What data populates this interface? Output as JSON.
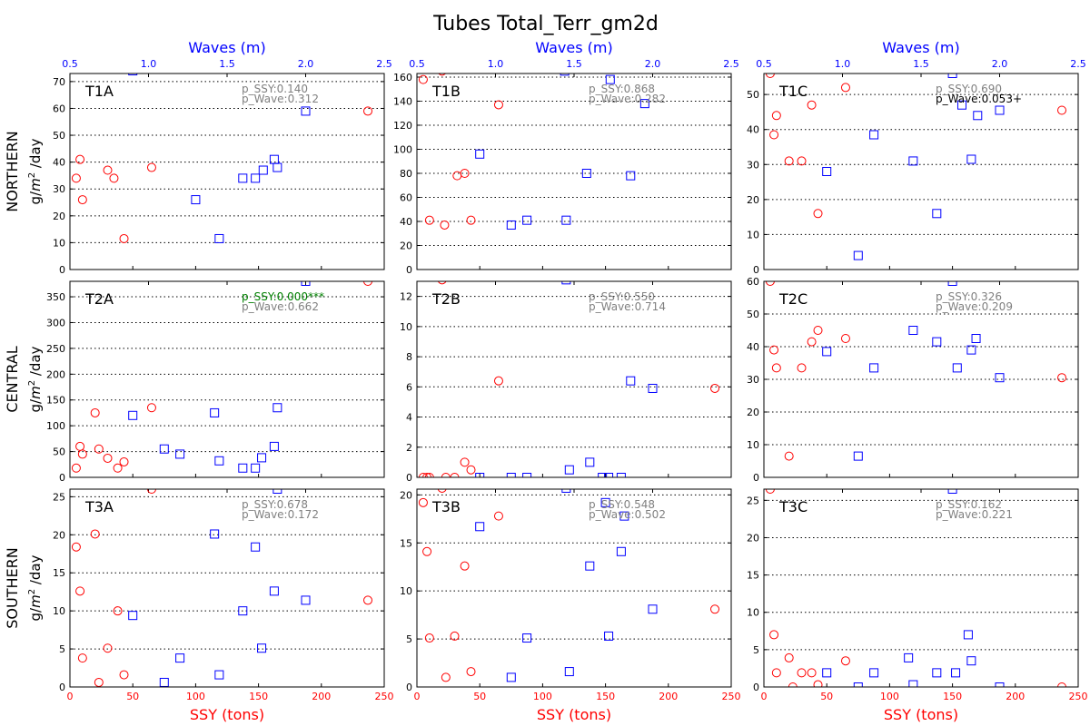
{
  "figure": {
    "title": "Tubes Total_Terr_gm2d",
    "top_axis_label": "Waves (m)",
    "bottom_axis_label": "SSY (tons)",
    "ssy_ticks": [
      "0",
      "50",
      "100",
      "150",
      "200",
      "250"
    ],
    "wave_ticks": [
      "0.5",
      "1.0",
      "1.5",
      "2.0",
      "2.5"
    ],
    "row_labels": [
      "NORTHERN",
      "CENTRAL",
      "SOUTHERN"
    ],
    "units_prefix": "g/",
    "units_m": "m",
    "units_exp": "2",
    "units_suffix": " /day",
    "colors": {
      "ssy": "#ff0000",
      "wave": "#0000ff",
      "title_wave": "#0000ff",
      "title_ssy": "#ff0000",
      "sig_green": "#008000",
      "sig_black": "#000000",
      "gray": "#808080"
    }
  },
  "chart_data": [
    {
      "type": "scatter",
      "title": "T1A",
      "p_ssy": "p_SSY:0.140",
      "p_wave": "p_Wave:0.312",
      "p_ssy_color": "gray",
      "p_wave_color": "gray",
      "xlim_ssy": [
        0,
        250
      ],
      "xlim_wave": [
        0.5,
        2.5
      ],
      "ylim": [
        0,
        73
      ],
      "yticks": [
        0,
        10,
        20,
        30,
        40,
        50,
        60,
        70
      ],
      "series": [
        {
          "name": "SSY",
          "marker": "circle",
          "color": "#ff0000",
          "x": [
            5,
            10,
            8,
            30,
            35,
            65,
            43,
            237
          ],
          "y": [
            34,
            26,
            41,
            37,
            34,
            38,
            11.5,
            59
          ]
        },
        {
          "name": "Waves",
          "marker": "square",
          "color": "#0000ff",
          "x": [
            0.9,
            1.3,
            1.45,
            1.6,
            1.68,
            1.73,
            1.8,
            1.82,
            2.0
          ],
          "y": [
            74,
            26,
            11.5,
            34,
            34,
            37,
            41,
            38,
            59
          ]
        }
      ]
    },
    {
      "type": "scatter",
      "title": "T1B",
      "p_ssy": "p_SSY:0.868",
      "p_wave": "p_Wave:0.282",
      "p_ssy_color": "gray",
      "p_wave_color": "gray",
      "xlim_ssy": [
        0,
        250
      ],
      "xlim_wave": [
        0.5,
        2.5
      ],
      "ylim": [
        0,
        163
      ],
      "yticks": [
        0,
        20,
        40,
        60,
        80,
        100,
        120,
        140,
        160
      ],
      "series": [
        {
          "name": "SSY",
          "marker": "circle",
          "color": "#ff0000",
          "x": [
            5,
            10,
            22,
            32,
            38,
            43,
            65,
            20
          ],
          "y": [
            158,
            41,
            37,
            78,
            80,
            41,
            137,
            165
          ]
        },
        {
          "name": "Waves",
          "marker": "square",
          "color": "#0000ff",
          "x": [
            0.9,
            1.1,
            1.2,
            1.45,
            1.58,
            1.73,
            1.86,
            1.95,
            1.44
          ],
          "y": [
            96,
            37,
            41,
            41,
            80,
            158,
            78,
            138,
            165
          ]
        }
      ]
    },
    {
      "type": "scatter",
      "title": "T1C",
      "p_ssy": "p_SSY:0.690",
      "p_wave": "p_Wave:0.053+",
      "p_ssy_color": "gray",
      "p_wave_color": "black",
      "xlim_ssy": [
        0,
        250
      ],
      "xlim_wave": [
        0.5,
        2.5
      ],
      "ylim": [
        0,
        56
      ],
      "yticks": [
        0,
        10,
        20,
        30,
        40,
        50
      ],
      "series": [
        {
          "name": "SSY",
          "marker": "circle",
          "color": "#ff0000",
          "x": [
            5,
            10,
            8,
            20,
            30,
            38,
            43,
            65,
            237
          ],
          "y": [
            56,
            44,
            38.5,
            31,
            31,
            47,
            16,
            52,
            45.5
          ]
        },
        {
          "name": "Waves",
          "marker": "square",
          "color": "#0000ff",
          "x": [
            0.9,
            1.1,
            1.2,
            1.45,
            1.6,
            1.76,
            1.82,
            1.86,
            2.0,
            1.7
          ],
          "y": [
            28,
            4,
            38.5,
            31,
            16,
            47,
            31.5,
            44,
            45.5,
            56
          ]
        }
      ]
    },
    {
      "type": "scatter",
      "title": "T2A",
      "p_ssy": "p_SSY:0.000***",
      "p_wave": "p_Wave:0.662",
      "p_ssy_color": "green",
      "p_wave_color": "gray",
      "xlim_ssy": [
        0,
        250
      ],
      "xlim_wave": [
        0.5,
        2.5
      ],
      "ylim": [
        0,
        380
      ],
      "yticks": [
        0,
        50,
        100,
        150,
        200,
        250,
        300,
        350
      ],
      "series": [
        {
          "name": "SSY",
          "marker": "circle",
          "color": "#ff0000",
          "x": [
            5,
            8,
            10,
            20,
            23,
            30,
            38,
            43,
            65,
            237
          ],
          "y": [
            18,
            60,
            45,
            125,
            55,
            37,
            18,
            30,
            135,
            380
          ]
        },
        {
          "name": "Waves",
          "marker": "square",
          "color": "#0000ff",
          "x": [
            0.9,
            1.1,
            1.2,
            1.42,
            1.45,
            1.6,
            1.68,
            1.72,
            1.8,
            1.82,
            2.0
          ],
          "y": [
            120,
            55,
            45,
            125,
            32,
            18,
            18,
            38,
            60,
            135,
            380
          ]
        }
      ]
    },
    {
      "type": "scatter",
      "title": "T2B",
      "p_ssy": "p_SSY:0.550",
      "p_wave": "p_Wave:0.714",
      "p_ssy_color": "gray",
      "p_wave_color": "gray",
      "xlim_ssy": [
        0,
        250
      ],
      "xlim_wave": [
        0.5,
        2.5
      ],
      "ylim": [
        0,
        13
      ],
      "yticks": [
        0,
        2,
        4,
        6,
        8,
        10,
        12
      ],
      "series": [
        {
          "name": "SSY",
          "marker": "circle",
          "color": "#ff0000",
          "x": [
            5,
            8,
            10,
            20,
            23,
            30,
            38,
            43,
            65,
            237
          ],
          "y": [
            0,
            0,
            0,
            13.1,
            0,
            0,
            1,
            0.5,
            6.4,
            5.9
          ]
        },
        {
          "name": "Waves",
          "marker": "square",
          "color": "#0000ff",
          "x": [
            0.9,
            1.1,
            1.2,
            1.45,
            1.47,
            1.6,
            1.68,
            1.72,
            1.8,
            1.86,
            2.0
          ],
          "y": [
            0,
            0,
            0,
            13.1,
            0.5,
            1,
            0,
            0,
            0,
            6.4,
            5.9
          ]
        }
      ]
    },
    {
      "type": "scatter",
      "title": "T2C",
      "p_ssy": "p_SSY:0.326",
      "p_wave": "p_Wave:0.209",
      "p_ssy_color": "gray",
      "p_wave_color": "gray",
      "xlim_ssy": [
        0,
        250
      ],
      "xlim_wave": [
        0.5,
        2.5
      ],
      "ylim": [
        0,
        60
      ],
      "yticks": [
        0,
        10,
        20,
        30,
        40,
        50,
        60
      ],
      "series": [
        {
          "name": "SSY",
          "marker": "circle",
          "color": "#ff0000",
          "x": [
            5,
            8,
            10,
            20,
            30,
            38,
            43,
            65,
            237
          ],
          "y": [
            60,
            39,
            33.5,
            6.5,
            33.5,
            41.5,
            45,
            42.5,
            30.5
          ]
        },
        {
          "name": "Waves",
          "marker": "square",
          "color": "#0000ff",
          "x": [
            0.9,
            1.1,
            1.2,
            1.45,
            1.6,
            1.7,
            1.73,
            1.82,
            1.85,
            2.0
          ],
          "y": [
            38.5,
            6.5,
            33.5,
            45,
            41.5,
            60,
            33.5,
            39,
            42.5,
            30.5
          ]
        }
      ]
    },
    {
      "type": "scatter",
      "title": "T3A",
      "p_ssy": "p_SSY:0.678",
      "p_wave": "p_Wave:0.172",
      "p_ssy_color": "gray",
      "p_wave_color": "gray",
      "xlim_ssy": [
        0,
        250
      ],
      "xlim_wave": [
        0.5,
        2.5
      ],
      "ylim": [
        0,
        26
      ],
      "yticks": [
        0,
        5,
        10,
        15,
        20,
        25
      ],
      "series": [
        {
          "name": "SSY",
          "marker": "circle",
          "color": "#ff0000",
          "x": [
            5,
            8,
            10,
            20,
            23,
            30,
            38,
            43,
            65,
            237
          ],
          "y": [
            18.4,
            12.6,
            3.8,
            20.1,
            0.6,
            5.1,
            10,
            1.6,
            26,
            11.4
          ]
        },
        {
          "name": "Waves",
          "marker": "square",
          "color": "#0000ff",
          "x": [
            0.9,
            1.1,
            1.2,
            1.42,
            1.45,
            1.6,
            1.68,
            1.72,
            1.8,
            1.82,
            2.0
          ],
          "y": [
            9.4,
            0.6,
            3.8,
            20.1,
            1.6,
            10,
            18.4,
            5.1,
            12.6,
            26,
            11.4
          ]
        }
      ]
    },
    {
      "type": "scatter",
      "title": "T3B",
      "p_ssy": "p_SSY:0.548",
      "p_wave": "p_Wave:0.502",
      "p_ssy_color": "gray",
      "p_wave_color": "gray",
      "xlim_ssy": [
        0,
        250
      ],
      "xlim_wave": [
        0.5,
        2.5
      ],
      "ylim": [
        0,
        20.6
      ],
      "yticks": [
        0,
        5,
        10,
        15,
        20
      ],
      "series": [
        {
          "name": "SSY",
          "marker": "circle",
          "color": "#ff0000",
          "x": [
            5,
            8,
            10,
            20,
            23,
            30,
            38,
            43,
            65,
            237
          ],
          "y": [
            19.2,
            14.1,
            5.1,
            20.7,
            1,
            5.3,
            12.6,
            1.6,
            17.8,
            8.1
          ]
        },
        {
          "name": "Waves",
          "marker": "square",
          "color": "#0000ff",
          "x": [
            0.9,
            1.1,
            1.2,
            1.45,
            1.47,
            1.6,
            1.7,
            1.72,
            1.8,
            1.82,
            2.0
          ],
          "y": [
            16.7,
            1,
            5.1,
            20.7,
            1.6,
            12.6,
            19.2,
            5.3,
            14.1,
            17.8,
            8.1
          ]
        }
      ]
    },
    {
      "type": "scatter",
      "title": "T3C",
      "p_ssy": "p_SSY:0.162",
      "p_wave": "p_Wave:0.221",
      "p_ssy_color": "gray",
      "p_wave_color": "gray",
      "xlim_ssy": [
        0,
        250
      ],
      "xlim_wave": [
        0.5,
        2.5
      ],
      "ylim": [
        0,
        26.5
      ],
      "yticks": [
        0,
        5,
        10,
        15,
        20,
        25
      ],
      "series": [
        {
          "name": "SSY",
          "marker": "circle",
          "color": "#ff0000",
          "x": [
            5,
            8,
            10,
            20,
            23,
            30,
            38,
            43,
            65,
            237
          ],
          "y": [
            26.5,
            7,
            1.9,
            3.9,
            0,
            1.9,
            1.9,
            0.3,
            3.5,
            0
          ]
        },
        {
          "name": "Waves",
          "marker": "square",
          "color": "#0000ff",
          "x": [
            0.9,
            1.1,
            1.2,
            1.42,
            1.45,
            1.6,
            1.7,
            1.72,
            1.8,
            1.82,
            2.0
          ],
          "y": [
            1.9,
            0,
            1.9,
            3.9,
            0.3,
            1.9,
            26.5,
            1.9,
            7,
            3.5,
            0
          ]
        }
      ]
    }
  ]
}
